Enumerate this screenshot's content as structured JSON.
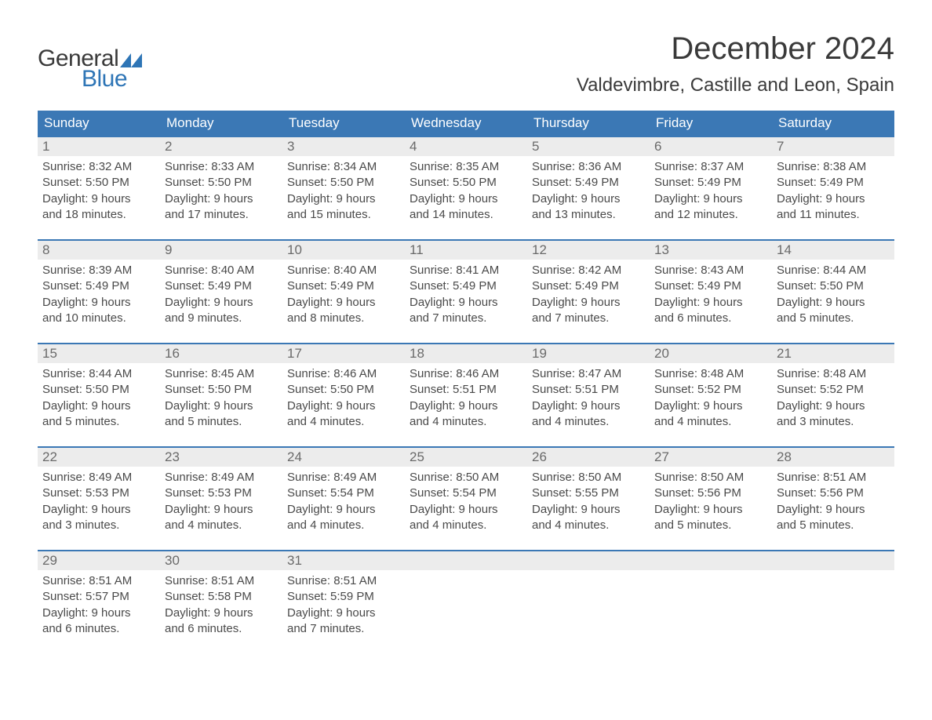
{
  "logo": {
    "text_general": "General",
    "text_blue": "Blue",
    "general_color": "#3a3a3a",
    "blue_color": "#2e75b6",
    "flag_color": "#2e75b6"
  },
  "header": {
    "month_title": "December 2024",
    "location": "Valdevimbre, Castille and Leon, Spain",
    "title_fontsize": 40,
    "location_fontsize": 24
  },
  "calendar": {
    "type": "table",
    "header_bg": "#3b78b5",
    "header_text_color": "#ffffff",
    "row_divider_color": "#3b78b5",
    "daynum_bg": "#ececec",
    "text_color": "#4a4a4a",
    "weekday_labels": [
      "Sunday",
      "Monday",
      "Tuesday",
      "Wednesday",
      "Thursday",
      "Friday",
      "Saturday"
    ],
    "day_fontsize": 15,
    "days": [
      {
        "n": 1,
        "sunrise": "8:32 AM",
        "sunset": "5:50 PM",
        "daylight": "9 hours and 18 minutes."
      },
      {
        "n": 2,
        "sunrise": "8:33 AM",
        "sunset": "5:50 PM",
        "daylight": "9 hours and 17 minutes."
      },
      {
        "n": 3,
        "sunrise": "8:34 AM",
        "sunset": "5:50 PM",
        "daylight": "9 hours and 15 minutes."
      },
      {
        "n": 4,
        "sunrise": "8:35 AM",
        "sunset": "5:50 PM",
        "daylight": "9 hours and 14 minutes."
      },
      {
        "n": 5,
        "sunrise": "8:36 AM",
        "sunset": "5:49 PM",
        "daylight": "9 hours and 13 minutes."
      },
      {
        "n": 6,
        "sunrise": "8:37 AM",
        "sunset": "5:49 PM",
        "daylight": "9 hours and 12 minutes."
      },
      {
        "n": 7,
        "sunrise": "8:38 AM",
        "sunset": "5:49 PM",
        "daylight": "9 hours and 11 minutes."
      },
      {
        "n": 8,
        "sunrise": "8:39 AM",
        "sunset": "5:49 PM",
        "daylight": "9 hours and 10 minutes."
      },
      {
        "n": 9,
        "sunrise": "8:40 AM",
        "sunset": "5:49 PM",
        "daylight": "9 hours and 9 minutes."
      },
      {
        "n": 10,
        "sunrise": "8:40 AM",
        "sunset": "5:49 PM",
        "daylight": "9 hours and 8 minutes."
      },
      {
        "n": 11,
        "sunrise": "8:41 AM",
        "sunset": "5:49 PM",
        "daylight": "9 hours and 7 minutes."
      },
      {
        "n": 12,
        "sunrise": "8:42 AM",
        "sunset": "5:49 PM",
        "daylight": "9 hours and 7 minutes."
      },
      {
        "n": 13,
        "sunrise": "8:43 AM",
        "sunset": "5:49 PM",
        "daylight": "9 hours and 6 minutes."
      },
      {
        "n": 14,
        "sunrise": "8:44 AM",
        "sunset": "5:50 PM",
        "daylight": "9 hours and 5 minutes."
      },
      {
        "n": 15,
        "sunrise": "8:44 AM",
        "sunset": "5:50 PM",
        "daylight": "9 hours and 5 minutes."
      },
      {
        "n": 16,
        "sunrise": "8:45 AM",
        "sunset": "5:50 PM",
        "daylight": "9 hours and 5 minutes."
      },
      {
        "n": 17,
        "sunrise": "8:46 AM",
        "sunset": "5:50 PM",
        "daylight": "9 hours and 4 minutes."
      },
      {
        "n": 18,
        "sunrise": "8:46 AM",
        "sunset": "5:51 PM",
        "daylight": "9 hours and 4 minutes."
      },
      {
        "n": 19,
        "sunrise": "8:47 AM",
        "sunset": "5:51 PM",
        "daylight": "9 hours and 4 minutes."
      },
      {
        "n": 20,
        "sunrise": "8:48 AM",
        "sunset": "5:52 PM",
        "daylight": "9 hours and 4 minutes."
      },
      {
        "n": 21,
        "sunrise": "8:48 AM",
        "sunset": "5:52 PM",
        "daylight": "9 hours and 3 minutes."
      },
      {
        "n": 22,
        "sunrise": "8:49 AM",
        "sunset": "5:53 PM",
        "daylight": "9 hours and 3 minutes."
      },
      {
        "n": 23,
        "sunrise": "8:49 AM",
        "sunset": "5:53 PM",
        "daylight": "9 hours and 4 minutes."
      },
      {
        "n": 24,
        "sunrise": "8:49 AM",
        "sunset": "5:54 PM",
        "daylight": "9 hours and 4 minutes."
      },
      {
        "n": 25,
        "sunrise": "8:50 AM",
        "sunset": "5:54 PM",
        "daylight": "9 hours and 4 minutes."
      },
      {
        "n": 26,
        "sunrise": "8:50 AM",
        "sunset": "5:55 PM",
        "daylight": "9 hours and 4 minutes."
      },
      {
        "n": 27,
        "sunrise": "8:50 AM",
        "sunset": "5:56 PM",
        "daylight": "9 hours and 5 minutes."
      },
      {
        "n": 28,
        "sunrise": "8:51 AM",
        "sunset": "5:56 PM",
        "daylight": "9 hours and 5 minutes."
      },
      {
        "n": 29,
        "sunrise": "8:51 AM",
        "sunset": "5:57 PM",
        "daylight": "9 hours and 6 minutes."
      },
      {
        "n": 30,
        "sunrise": "8:51 AM",
        "sunset": "5:58 PM",
        "daylight": "9 hours and 6 minutes."
      },
      {
        "n": 31,
        "sunrise": "8:51 AM",
        "sunset": "5:59 PM",
        "daylight": "9 hours and 7 minutes."
      }
    ],
    "labels": {
      "sunrise": "Sunrise:",
      "sunset": "Sunset:",
      "daylight": "Daylight:"
    },
    "first_day_weekday_index": 0,
    "total_cells": 35
  }
}
